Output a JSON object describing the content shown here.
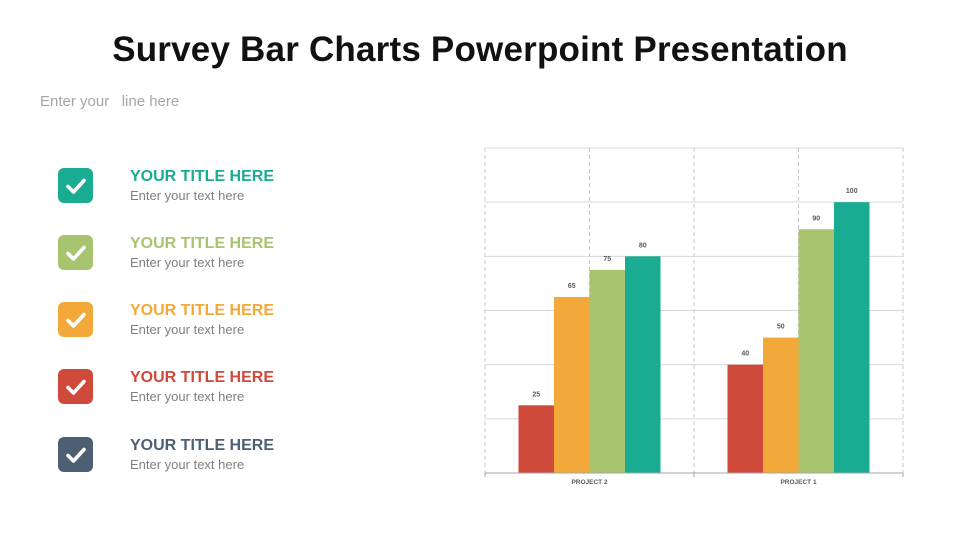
{
  "page": {
    "title": "Survey Bar Charts Powerpoint Presentation",
    "subtitle": "Enter your   line here"
  },
  "items": [
    {
      "title": "YOUR TITLE HERE",
      "text": "Enter your text here",
      "color": "#1aab93",
      "icon": "check-icon"
    },
    {
      "title": "YOUR TITLE HERE",
      "text": "Enter your text here",
      "color": "#a8c46f",
      "icon": "check-icon"
    },
    {
      "title": "YOUR TITLE HERE",
      "text": "Enter your text here",
      "color": "#f3a93a",
      "icon": "check-icon"
    },
    {
      "title": "YOUR TITLE HERE",
      "text": "Enter your text here",
      "color": "#cf4a3b",
      "icon": "check-icon"
    },
    {
      "title": "YOUR TITLE HERE",
      "text": "Enter your text here",
      "color": "#4d5f73",
      "icon": "check-icon"
    }
  ],
  "chart_data": {
    "type": "bar",
    "categories": [
      "PROJECT 2",
      "PROJECT 1"
    ],
    "series": [
      {
        "values": [
          25,
          40
        ],
        "color": "#cf4a3b"
      },
      {
        "values": [
          65,
          50
        ],
        "color": "#f3a93a"
      },
      {
        "values": [
          75,
          90
        ],
        "color": "#a8c46f"
      },
      {
        "values": [
          80,
          100
        ],
        "color": "#1aab93"
      }
    ],
    "ylim": [
      0,
      120
    ],
    "grid": true,
    "data_labels": true,
    "xlabel": "",
    "ylabel": ""
  }
}
